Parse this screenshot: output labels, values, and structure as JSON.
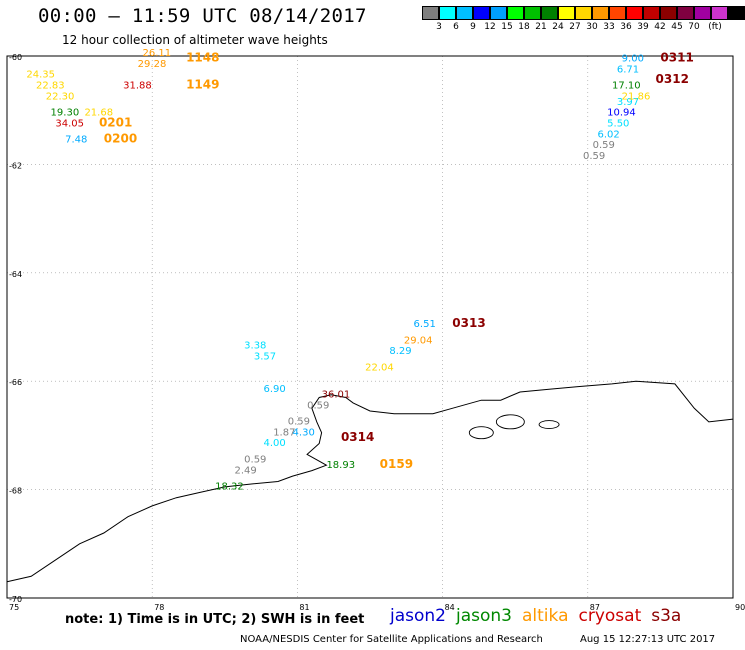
{
  "header": {
    "title": "00:00 — 11:59 UTC 08/14/2017",
    "subtitle": "12 hour collection of altimeter wave heights"
  },
  "colorbar": {
    "colors": [
      "#7f7f7f",
      "#00ffff",
      "#00bfff",
      "#0000ff",
      "#00a0ff",
      "#00ff00",
      "#00c000",
      "#008000",
      "#ffff00",
      "#ffd700",
      "#ff9900",
      "#ff4500",
      "#ff0000",
      "#c00000",
      "#8b0000",
      "#800040",
      "#a000a0",
      "#cc33cc",
      "#000000"
    ],
    "ticks": [
      "3",
      "6",
      "9",
      "12",
      "15",
      "18",
      "21",
      "24",
      "27",
      "30",
      "33",
      "36",
      "39",
      "42",
      "45",
      "70",
      "(ft)"
    ]
  },
  "footer": {
    "note": "note:  1) Time is in UTC;  2) SWH is in feet",
    "satellites": [
      {
        "name": "jason2",
        "color": "#0000cc"
      },
      {
        "name": "jason3",
        "color": "#008800"
      },
      {
        "name": "altika",
        "color": "#ff9900"
      },
      {
        "name": "cryosat",
        "color": "#cc0000"
      },
      {
        "name": "s3a",
        "color": "#8b0000"
      }
    ],
    "credit": "NOAA/NESDIS Center for Satellite Applications and Research",
    "stamp": "Aug 15 12:27:13 UTC 2017"
  },
  "chart_data": {
    "type": "scatter",
    "title": "00:00 — 11:59 UTC 08/14/2017",
    "subtitle": "12 hour collection of altimeter wave heights",
    "xlim": [
      75,
      90
    ],
    "ylim": [
      -70,
      -60
    ],
    "x_ticks": [
      75,
      78,
      81,
      84,
      87,
      90
    ],
    "y_ticks": [
      -60,
      -62,
      -64,
      -66,
      -68,
      -70
    ],
    "grid": true,
    "points": [
      {
        "x": 75.4,
        "y": -60.4,
        "label": "24.35",
        "color": "#ffd700"
      },
      {
        "x": 75.6,
        "y": -60.6,
        "label": "22.83",
        "color": "#ffd700"
      },
      {
        "x": 75.8,
        "y": -60.8,
        "label": "22.30",
        "color": "#ffd700"
      },
      {
        "x": 75.9,
        "y": -61.1,
        "label": "19.30",
        "color": "#008000"
      },
      {
        "x": 76.0,
        "y": -61.3,
        "label": "34.05",
        "color": "#cc0000"
      },
      {
        "x": 76.6,
        "y": -61.1,
        "label": "21.68",
        "color": "#ffd700"
      },
      {
        "x": 76.2,
        "y": -61.6,
        "label": "7.48",
        "color": "#00aaff"
      },
      {
        "x": 77.8,
        "y": -60.0,
        "label": "26.11",
        "color": "#ff9900"
      },
      {
        "x": 77.7,
        "y": -60.2,
        "label": "29.28",
        "color": "#ff9900"
      },
      {
        "x": 77.4,
        "y": -60.6,
        "label": "31.88",
        "color": "#cc0000"
      },
      {
        "x": 86.9,
        "y": -61.9,
        "label": "0.59",
        "color": "#7f7f7f"
      },
      {
        "x": 87.1,
        "y": -61.7,
        "label": "0.59",
        "color": "#7f7f7f"
      },
      {
        "x": 87.2,
        "y": -61.5,
        "label": "6.02",
        "color": "#00bfff"
      },
      {
        "x": 87.4,
        "y": -61.3,
        "label": "5.50",
        "color": "#00e0ff"
      },
      {
        "x": 87.4,
        "y": -61.1,
        "label": "10.94",
        "color": "#0000ff"
      },
      {
        "x": 87.6,
        "y": -60.9,
        "label": "3.97",
        "color": "#00e0ff"
      },
      {
        "x": 87.7,
        "y": -60.8,
        "label": "21.86",
        "color": "#ffd700"
      },
      {
        "x": 87.5,
        "y": -60.6,
        "label": "17.10",
        "color": "#008000"
      },
      {
        "x": 87.6,
        "y": -60.3,
        "label": "6.71",
        "color": "#00bfff"
      },
      {
        "x": 87.7,
        "y": -60.1,
        "label": "9.00",
        "color": "#00aaff"
      },
      {
        "x": 83.4,
        "y": -65.0,
        "label": "6.51",
        "color": "#00aaff"
      },
      {
        "x": 83.2,
        "y": -65.3,
        "label": "29.04",
        "color": "#ff9900"
      },
      {
        "x": 82.9,
        "y": -65.5,
        "label": "8.29",
        "color": "#00bfff"
      },
      {
        "x": 82.4,
        "y": -65.8,
        "label": "22.04",
        "color": "#ffd700"
      },
      {
        "x": 79.9,
        "y": -65.4,
        "label": "3.38",
        "color": "#00e0ff"
      },
      {
        "x": 80.1,
        "y": -65.6,
        "label": "3.57",
        "color": "#00e0ff"
      },
      {
        "x": 80.3,
        "y": -66.2,
        "label": "6.90",
        "color": "#00bfff"
      },
      {
        "x": 81.5,
        "y": -66.3,
        "label": "36.01",
        "color": "#8b0000"
      },
      {
        "x": 81.2,
        "y": -66.5,
        "label": "0.59",
        "color": "#7f7f7f"
      },
      {
        "x": 80.8,
        "y": -66.8,
        "label": "0.59",
        "color": "#7f7f7f"
      },
      {
        "x": 80.5,
        "y": -67.0,
        "label": "1.87",
        "color": "#7f7f7f"
      },
      {
        "x": 80.9,
        "y": -67.0,
        "label": "4.30",
        "color": "#00aaff"
      },
      {
        "x": 80.3,
        "y": -67.2,
        "label": "4.00",
        "color": "#00e0ff"
      },
      {
        "x": 79.9,
        "y": -67.5,
        "label": "0.59",
        "color": "#7f7f7f"
      },
      {
        "x": 79.7,
        "y": -67.7,
        "label": "2.49",
        "color": "#7f7f7f"
      },
      {
        "x": 79.3,
        "y": -68.0,
        "label": "18.32",
        "color": "#008000"
      },
      {
        "x": 81.6,
        "y": -67.6,
        "label": "18.93",
        "color": "#008000"
      }
    ],
    "time_labels": [
      {
        "x": 78.7,
        "y": -60.1,
        "label": "1148",
        "color": "#ff9900"
      },
      {
        "x": 78.7,
        "y": -60.6,
        "label": "1149",
        "color": "#ff9900"
      },
      {
        "x": 76.9,
        "y": -61.3,
        "label": "0201",
        "color": "#ff9900"
      },
      {
        "x": 77.0,
        "y": -61.6,
        "label": "0200",
        "color": "#ff9900"
      },
      {
        "x": 88.5,
        "y": -60.1,
        "label": "0311",
        "color": "#8b0000"
      },
      {
        "x": 88.4,
        "y": -60.5,
        "label": "0312",
        "color": "#8b0000"
      },
      {
        "x": 84.2,
        "y": -65.0,
        "label": "0313",
        "color": "#8b0000"
      },
      {
        "x": 81.9,
        "y": -67.1,
        "label": "0314",
        "color": "#8b0000"
      },
      {
        "x": 82.7,
        "y": -67.6,
        "label": "0159",
        "color": "#ff9900"
      }
    ],
    "coastline": [
      [
        75.0,
        -69.7
      ],
      [
        75.5,
        -69.6
      ],
      [
        76.0,
        -69.3
      ],
      [
        76.5,
        -69.0
      ],
      [
        77.0,
        -68.8
      ],
      [
        77.5,
        -68.5
      ],
      [
        78.0,
        -68.3
      ],
      [
        78.5,
        -68.15
      ],
      [
        79.0,
        -68.05
      ],
      [
        79.5,
        -67.95
      ],
      [
        80.0,
        -67.9
      ],
      [
        80.6,
        -67.85
      ],
      [
        80.9,
        -67.75
      ],
      [
        81.3,
        -67.65
      ],
      [
        81.6,
        -67.55
      ],
      [
        81.4,
        -67.45
      ],
      [
        81.2,
        -67.35
      ],
      [
        81.45,
        -67.15
      ],
      [
        81.5,
        -66.95
      ],
      [
        81.4,
        -66.75
      ],
      [
        81.3,
        -66.5
      ],
      [
        81.45,
        -66.3
      ],
      [
        81.7,
        -66.25
      ],
      [
        82.0,
        -66.3
      ],
      [
        82.15,
        -66.4
      ],
      [
        82.5,
        -66.55
      ],
      [
        83.0,
        -66.6
      ],
      [
        83.4,
        -66.6
      ],
      [
        83.8,
        -66.6
      ],
      [
        84.2,
        -66.5
      ],
      [
        84.8,
        -66.35
      ],
      [
        85.2,
        -66.35
      ],
      [
        85.6,
        -66.2
      ],
      [
        86.2,
        -66.15
      ],
      [
        86.8,
        -66.1
      ],
      [
        87.5,
        -66.05
      ],
      [
        88.0,
        -66.0
      ],
      [
        88.8,
        -66.05
      ],
      [
        89.2,
        -66.5
      ],
      [
        89.5,
        -66.75
      ],
      [
        90.0,
        -66.7
      ]
    ]
  }
}
